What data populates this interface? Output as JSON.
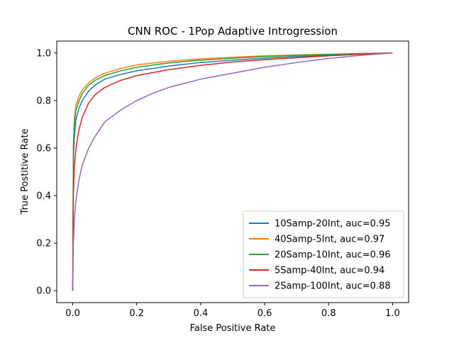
{
  "chart_data": {
    "type": "line",
    "title": "CNN ROC - 1Pop Adaptive Introgression",
    "xlabel": "False Positive Rate",
    "ylabel": "True Postitive Rate",
    "xlim": [
      -0.05,
      1.05
    ],
    "ylim": [
      -0.05,
      1.05
    ],
    "xticks": [
      0.0,
      0.2,
      0.4,
      0.6,
      0.8,
      1.0
    ],
    "yticks": [
      0.0,
      0.2,
      0.4,
      0.6,
      0.8,
      1.0
    ],
    "xtick_labels": [
      "0.0",
      "0.2",
      "0.4",
      "0.6",
      "0.8",
      "1.0"
    ],
    "ytick_labels": [
      "0.0",
      "0.2",
      "0.4",
      "0.6",
      "0.8",
      "1.0"
    ],
    "grid": false,
    "legend_position": "lower-right",
    "series": [
      {
        "name": "10Samp-20Int, auc=0.95",
        "color": "#1f77b4",
        "x": [
          0,
          0.002,
          0.005,
          0.01,
          0.02,
          0.03,
          0.05,
          0.07,
          0.1,
          0.15,
          0.2,
          0.3,
          0.4,
          0.5,
          0.6,
          0.7,
          0.8,
          0.9,
          1.0
        ],
        "y": [
          0,
          0.55,
          0.65,
          0.72,
          0.77,
          0.8,
          0.84,
          0.865,
          0.89,
          0.91,
          0.925,
          0.945,
          0.96,
          0.97,
          0.978,
          0.985,
          0.99,
          0.995,
          1.0
        ]
      },
      {
        "name": "40Samp-5Int, auc=0.97",
        "color": "#ff7f0e",
        "x": [
          0,
          0.002,
          0.005,
          0.01,
          0.02,
          0.03,
          0.05,
          0.07,
          0.1,
          0.15,
          0.2,
          0.3,
          0.4,
          0.5,
          0.6,
          0.7,
          0.8,
          0.9,
          1.0
        ],
        "y": [
          0,
          0.62,
          0.72,
          0.78,
          0.82,
          0.845,
          0.875,
          0.895,
          0.915,
          0.935,
          0.95,
          0.965,
          0.975,
          0.982,
          0.988,
          0.992,
          0.995,
          0.998,
          1.0
        ]
      },
      {
        "name": "20Samp-10Int, auc=0.96",
        "color": "#2ca02c",
        "x": [
          0,
          0.002,
          0.005,
          0.01,
          0.02,
          0.03,
          0.05,
          0.07,
          0.1,
          0.15,
          0.2,
          0.3,
          0.4,
          0.5,
          0.6,
          0.7,
          0.8,
          0.9,
          1.0
        ],
        "y": [
          0,
          0.6,
          0.7,
          0.76,
          0.8,
          0.83,
          0.865,
          0.885,
          0.905,
          0.925,
          0.94,
          0.958,
          0.97,
          0.978,
          0.985,
          0.99,
          0.994,
          0.997,
          1.0
        ]
      },
      {
        "name": "5Samp-40Int, auc=0.94",
        "color": "#d62728",
        "x": [
          0,
          0.002,
          0.005,
          0.01,
          0.02,
          0.03,
          0.05,
          0.07,
          0.1,
          0.15,
          0.2,
          0.3,
          0.4,
          0.5,
          0.6,
          0.7,
          0.8,
          0.9,
          1.0
        ],
        "y": [
          0,
          0.4,
          0.52,
          0.6,
          0.68,
          0.73,
          0.79,
          0.825,
          0.855,
          0.885,
          0.905,
          0.93,
          0.948,
          0.962,
          0.972,
          0.98,
          0.988,
          0.995,
          1.0
        ]
      },
      {
        "name": "2Samp-100Int, auc=0.88",
        "color": "#9467bd",
        "x": [
          0,
          0.002,
          0.005,
          0.01,
          0.02,
          0.03,
          0.05,
          0.07,
          0.1,
          0.15,
          0.2,
          0.25,
          0.3,
          0.4,
          0.5,
          0.6,
          0.7,
          0.8,
          0.9,
          1.0
        ],
        "y": [
          0,
          0.2,
          0.3,
          0.38,
          0.47,
          0.53,
          0.6,
          0.65,
          0.71,
          0.76,
          0.8,
          0.83,
          0.855,
          0.89,
          0.915,
          0.94,
          0.96,
          0.977,
          0.99,
          1.0
        ]
      }
    ]
  }
}
